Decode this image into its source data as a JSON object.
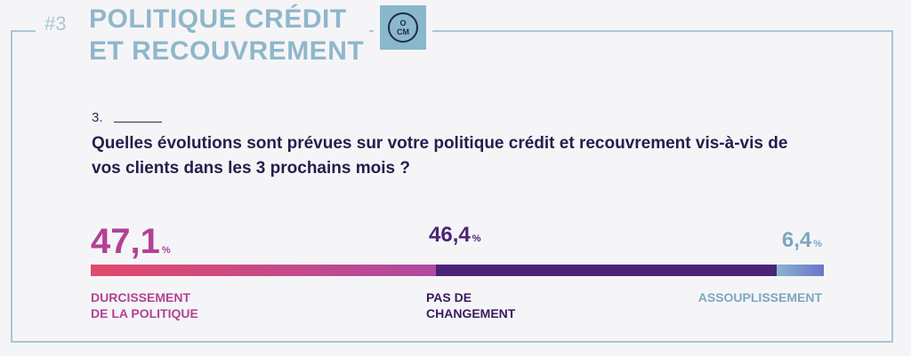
{
  "header": {
    "section_number": "#3",
    "title_line1": "POLITIQUE CRÉDIT",
    "title_line2": "ET RECOUVREMENT",
    "logo_top": "O",
    "logo_bottom": "CM"
  },
  "question": {
    "number": "3.",
    "text": "Quelles évolutions sont prévues sur votre politique crédit et recouvrement vis-à-vis de vos clients dans les 3 prochains mois ?"
  },
  "chart_data": {
    "type": "bar",
    "orientation": "horizontal-stacked",
    "categories": [
      "DURCISSEMENT DE LA POLITIQUE",
      "PAS DE CHANGEMENT",
      "ASSOUPLISSEMENT"
    ],
    "category_lines": [
      [
        "DURCISSEMENT",
        "DE LA POLITIQUE"
      ],
      [
        "PAS DE",
        "CHANGEMENT"
      ],
      [
        "ASSOUPLISSEMENT"
      ]
    ],
    "values": [
      47.1,
      46.4,
      6.4
    ],
    "value_labels": [
      "47,1",
      "46,4",
      "6,4"
    ],
    "unit": "%",
    "colors": [
      [
        "#e24a6b",
        "#b04aa0"
      ],
      [
        "#4a2477",
        "#4a2477"
      ],
      [
        "#88b5cc",
        "#6a74cc"
      ]
    ],
    "total": 100
  }
}
